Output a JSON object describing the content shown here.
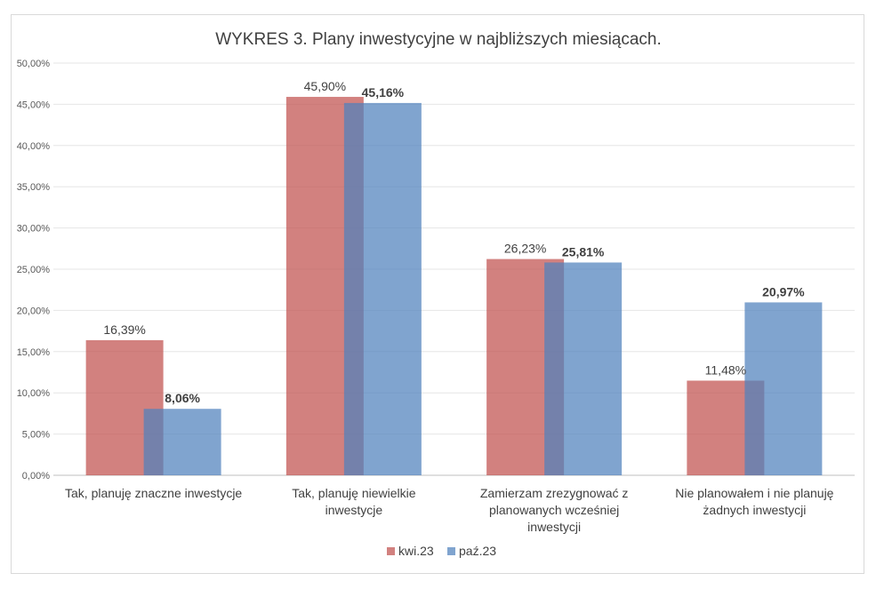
{
  "chart_data": {
    "type": "bar",
    "title": "WYKRES 3. Plany inwestycyjne w najbliższych miesiącach.",
    "categories": [
      [
        "Tak,  planuję  znaczne  inwestycje"
      ],
      [
        "Tak,  planuję  niewielkie",
        "inwestycje"
      ],
      [
        "Zamierzam  zrezygnować  z",
        "planowanych  wcześniej",
        "inwestycji"
      ],
      [
        "Nie  planowałem  i nie  planuję",
        "żadnych  inwestycji"
      ]
    ],
    "series": [
      {
        "name": "kwi.23",
        "values": [
          16.39,
          45.9,
          26.23,
          11.48
        ],
        "labels": [
          "16,39%",
          "45,90%",
          "26,23%",
          "11,48%"
        ],
        "color": "#C0504D",
        "bold": false
      },
      {
        "name": "paź.23",
        "values": [
          8.06,
          45.16,
          25.81,
          20.97
        ],
        "labels": [
          "8,06%",
          "45,16%",
          "25,81%",
          "20,97%"
        ],
        "color": "#4F81BD",
        "bold": true
      }
    ],
    "ylim": [
      0,
      50
    ],
    "yticks": [
      0,
      5,
      10,
      15,
      20,
      25,
      30,
      35,
      40,
      45,
      50
    ],
    "ytick_labels": [
      "0,00%",
      "5,00%",
      "10,00%",
      "15,00%",
      "20,00%",
      "25,00%",
      "30,00%",
      "35,00%",
      "40,00%",
      "45,00%",
      "50,00%"
    ],
    "grid": true,
    "legend": "bottom"
  }
}
